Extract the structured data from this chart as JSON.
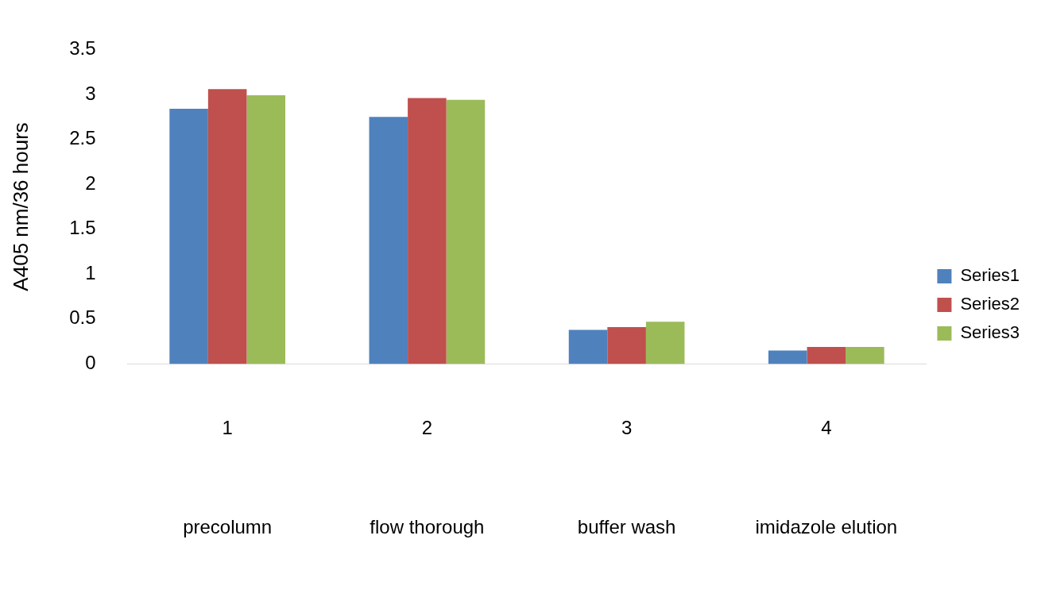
{
  "chart_data": {
    "type": "bar",
    "ylabel": "A405 nm/36 hours",
    "categories": [
      "1\nprecolumn",
      "2\nflow thorough",
      "3\nbuffer wash",
      "4\nimidazole elution"
    ],
    "series": [
      {
        "name": "Series1",
        "color": "#4f81bd",
        "values": [
          2.84,
          2.75,
          0.38,
          0.15
        ]
      },
      {
        "name": "Series2",
        "color": "#c0504d",
        "values": [
          3.06,
          2.96,
          0.41,
          0.19
        ]
      },
      {
        "name": "Series3",
        "color": "#9bbb59",
        "values": [
          2.99,
          2.94,
          0.47,
          0.19
        ]
      }
    ],
    "ylim": [
      0,
      3.5
    ],
    "yticks": [
      0,
      0.5,
      1,
      1.5,
      2,
      2.5,
      3,
      3.5
    ],
    "grid": false,
    "legend": "right"
  }
}
